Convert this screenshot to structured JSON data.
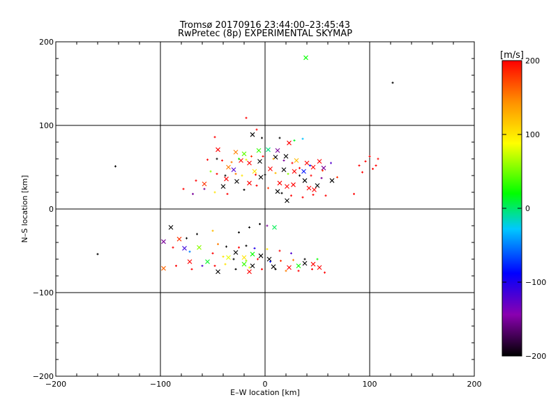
{
  "chart_data": {
    "type": "scatter",
    "title_line1": "Tromsø 20170916 23:44:00–23:45:43",
    "title_line2": "RwPretec (8p) EXPERIMENTAL SKYMAP",
    "xlabel": "E–W location [km]",
    "ylabel": "N–S location [km]",
    "xlim": [
      -200,
      200
    ],
    "ylim": [
      -200,
      200
    ],
    "xticks": [
      -200,
      -100,
      0,
      100,
      200
    ],
    "yticks": [
      -200,
      -100,
      0,
      100,
      200
    ],
    "x_tick_labels": [
      "−200",
      "−100",
      "0",
      "100",
      "200"
    ],
    "y_tick_labels": [
      "−200",
      "−100",
      "0",
      "100",
      "200"
    ],
    "grid": true,
    "colorbar": {
      "label": "[m/s]",
      "range": [
        -200,
        200
      ],
      "ticks": [
        200,
        100,
        0,
        -100,
        -200
      ],
      "tick_labels": [
        "200",
        "100",
        "0",
        "−100",
        "−200"
      ]
    },
    "series": [
      {
        "name": "cross markers (large)",
        "marker": "x",
        "points": [
          [
            39,
            181,
            30
          ],
          [
            -12,
            89,
            -200
          ],
          [
            23,
            79,
            200
          ],
          [
            -45,
            71,
            200
          ],
          [
            -28,
            68,
            150
          ],
          [
            -20,
            66,
            50
          ],
          [
            -6,
            70,
            40
          ],
          [
            3,
            71,
            0
          ],
          [
            12,
            70,
            -150
          ],
          [
            -23,
            58,
            200
          ],
          [
            -15,
            55,
            200
          ],
          [
            -5,
            57,
            -200
          ],
          [
            10,
            62,
            -200
          ],
          [
            20,
            63,
            -200
          ],
          [
            30,
            58,
            120
          ],
          [
            40,
            55,
            200
          ],
          [
            52,
            57,
            200
          ],
          [
            -35,
            50,
            150
          ],
          [
            -30,
            47,
            -120
          ],
          [
            -10,
            45,
            100
          ],
          [
            5,
            48,
            200
          ],
          [
            18,
            47,
            -200
          ],
          [
            28,
            45,
            200
          ],
          [
            37,
            45,
            -80
          ],
          [
            46,
            50,
            200
          ],
          [
            56,
            49,
            -150
          ],
          [
            -37,
            36,
            200
          ],
          [
            -27,
            33,
            -200
          ],
          [
            -15,
            31,
            200
          ],
          [
            -4,
            38,
            -200
          ],
          [
            14,
            31,
            200
          ],
          [
            21,
            27,
            200
          ],
          [
            27,
            29,
            200
          ],
          [
            38,
            34,
            -200
          ],
          [
            50,
            28,
            -200
          ],
          [
            -40,
            27,
            -200
          ],
          [
            -58,
            30,
            180
          ],
          [
            12,
            21,
            -200
          ],
          [
            42,
            25,
            200
          ],
          [
            47,
            23,
            200
          ],
          [
            64,
            34,
            -200
          ],
          [
            21,
            10,
            -200
          ],
          [
            9,
            -22,
            10
          ],
          [
            -90,
            -22,
            -200
          ],
          [
            -82,
            -36,
            180
          ],
          [
            -63,
            -46,
            60
          ],
          [
            -97,
            -39,
            -150
          ],
          [
            -77,
            -47,
            -110
          ],
          [
            -28,
            -52,
            -200
          ],
          [
            -12,
            -54,
            30
          ],
          [
            -4,
            -56,
            -200
          ],
          [
            4,
            -60,
            -200
          ],
          [
            -20,
            -58,
            100
          ],
          [
            -35,
            -58,
            80
          ],
          [
            -55,
            -63,
            20
          ],
          [
            -72,
            -63,
            200
          ],
          [
            38,
            -65,
            -200
          ],
          [
            23,
            -70,
            200
          ],
          [
            32,
            -68,
            30
          ],
          [
            46,
            -66,
            200
          ],
          [
            52,
            -70,
            200
          ],
          [
            8,
            -69,
            -200
          ],
          [
            -12,
            -68,
            -200
          ],
          [
            -20,
            -66,
            40
          ],
          [
            -15,
            -75,
            200
          ],
          [
            -45,
            -75,
            -200
          ],
          [
            -97,
            -71,
            160
          ]
        ]
      },
      {
        "name": "plus markers (small)",
        "marker": "+",
        "points": [
          [
            -143,
            51,
            -200
          ],
          [
            122,
            151,
            -200
          ],
          [
            -160,
            -54,
            -200
          ],
          [
            -18,
            109,
            200
          ],
          [
            -8,
            95,
            200
          ],
          [
            -48,
            86,
            200
          ],
          [
            -3,
            85,
            -200
          ],
          [
            28,
            82,
            20
          ],
          [
            36,
            84,
            -30
          ],
          [
            14,
            85,
            -200
          ],
          [
            -55,
            59,
            200
          ],
          [
            -46,
            60,
            -200
          ],
          [
            -41,
            58,
            200
          ],
          [
            -32,
            56,
            150
          ],
          [
            -25,
            60,
            30
          ],
          [
            -18,
            59,
            80
          ],
          [
            -13,
            63,
            180
          ],
          [
            -2,
            63,
            200
          ],
          [
            8,
            60,
            130
          ],
          [
            18,
            58,
            -150
          ],
          [
            26,
            55,
            200
          ],
          [
            33,
            49,
            200
          ],
          [
            43,
            52,
            -80
          ],
          [
            55,
            46,
            180
          ],
          [
            63,
            55,
            -120
          ],
          [
            -52,
            45,
            60
          ],
          [
            -46,
            42,
            200
          ],
          [
            -38,
            40,
            -200
          ],
          [
            -28,
            42,
            150
          ],
          [
            -22,
            40,
            100
          ],
          [
            -9,
            41,
            200
          ],
          [
            0,
            41,
            -200
          ],
          [
            10,
            43,
            120
          ],
          [
            22,
            42,
            60
          ],
          [
            33,
            40,
            -200
          ],
          [
            44,
            40,
            200
          ],
          [
            54,
            37,
            -150
          ],
          [
            69,
            38,
            180
          ],
          [
            -58,
            24,
            -150
          ],
          [
            -48,
            20,
            100
          ],
          [
            -36,
            18,
            200
          ],
          [
            -20,
            23,
            -200
          ],
          [
            -8,
            28,
            200
          ],
          [
            3,
            25,
            180
          ],
          [
            16,
            19,
            -200
          ],
          [
            25,
            16,
            200
          ],
          [
            36,
            14,
            200
          ],
          [
            46,
            17,
            200
          ],
          [
            58,
            16,
            200
          ],
          [
            85,
            18,
            200
          ],
          [
            96,
            57,
            200
          ],
          [
            100,
            63,
            200
          ],
          [
            103,
            48,
            200
          ],
          [
            108,
            60,
            200
          ],
          [
            90,
            52,
            200
          ],
          [
            93,
            44,
            200
          ],
          [
            106,
            52,
            200
          ],
          [
            -78,
            24,
            200
          ],
          [
            -66,
            34,
            200
          ],
          [
            -69,
            18,
            -150
          ],
          [
            -15,
            -22,
            -200
          ],
          [
            -5,
            -18,
            -200
          ],
          [
            2,
            -20,
            -150
          ],
          [
            -25,
            -28,
            -200
          ],
          [
            -50,
            -26,
            120
          ],
          [
            -65,
            -30,
            -200
          ],
          [
            -75,
            -35,
            -200
          ],
          [
            -88,
            -46,
            200
          ],
          [
            -45,
            -42,
            150
          ],
          [
            -37,
            -45,
            -200
          ],
          [
            -25,
            -46,
            200
          ],
          [
            -18,
            -44,
            -200
          ],
          [
            -10,
            -47,
            -100
          ],
          [
            2,
            -48,
            100
          ],
          [
            14,
            -50,
            200
          ],
          [
            25,
            -53,
            -120
          ],
          [
            -50,
            -53,
            200
          ],
          [
            -40,
            -57,
            100
          ],
          [
            -30,
            -60,
            -200
          ],
          [
            -18,
            -62,
            60
          ],
          [
            -7,
            -60,
            200
          ],
          [
            5,
            -63,
            -80
          ],
          [
            15,
            -62,
            180
          ],
          [
            27,
            -61,
            150
          ],
          [
            38,
            -60,
            -200
          ],
          [
            50,
            -60,
            30
          ],
          [
            -60,
            -68,
            -120
          ],
          [
            -48,
            -68,
            200
          ],
          [
            -38,
            -66,
            100
          ],
          [
            -28,
            -72,
            -200
          ],
          [
            -15,
            -70,
            80
          ],
          [
            -3,
            -72,
            200
          ],
          [
            10,
            -72,
            -200
          ],
          [
            20,
            -74,
            150
          ],
          [
            32,
            -74,
            200
          ],
          [
            45,
            -72,
            200
          ],
          [
            57,
            -76,
            200
          ],
          [
            -85,
            -68,
            200
          ],
          [
            -70,
            -72,
            200
          ],
          [
            -72,
            -51,
            -50
          ]
        ]
      }
    ]
  },
  "colors": {
    "colormap": [
      "#000000",
      "#8a00b0",
      "#0000ff",
      "#00c8ff",
      "#00ff00",
      "#ffff00",
      "#ff9000",
      "#ff0000"
    ],
    "axis": "#000000",
    "background": "#ffffff"
  }
}
